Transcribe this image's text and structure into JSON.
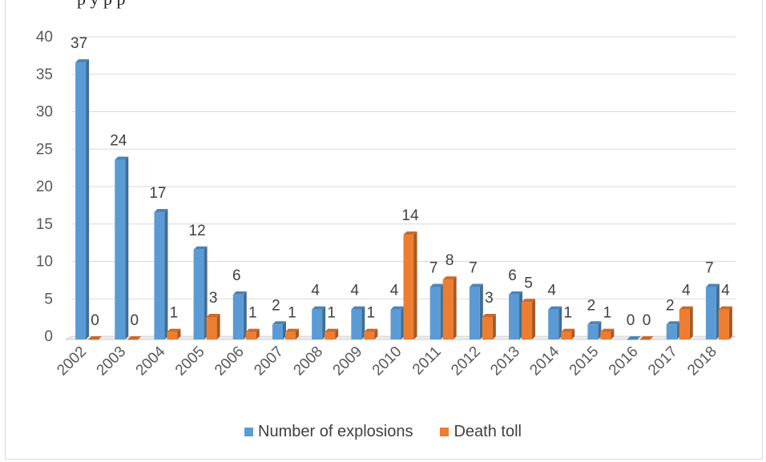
{
  "chart_data": {
    "type": "bar",
    "categories": [
      "2002",
      "2003",
      "2004",
      "2005",
      "2006",
      "2007",
      "2008",
      "2009",
      "2010",
      "2011",
      "2012",
      "2013",
      "2014",
      "2015",
      "2016",
      "2017",
      "2018"
    ],
    "series": [
      {
        "name": "Number of  explosions",
        "color": "#5b9bd5",
        "values": [
          37,
          24,
          17,
          12,
          6,
          2,
          4,
          4,
          4,
          7,
          7,
          6,
          4,
          2,
          0,
          2,
          7
        ]
      },
      {
        "name": "Death toll",
        "color": "#ed7d31",
        "values": [
          0,
          0,
          1,
          3,
          1,
          1,
          1,
          1,
          14,
          8,
          3,
          5,
          1,
          1,
          0,
          4,
          4
        ]
      }
    ],
    "ylim": [
      0,
      40
    ],
    "yticks": [
      "0",
      "5",
      "10",
      "15",
      "20",
      "25",
      "30",
      "35",
      "40"
    ],
    "grid": true,
    "legend_position": "bottom"
  },
  "caption_fragment": "p                                                     y   p   p"
}
